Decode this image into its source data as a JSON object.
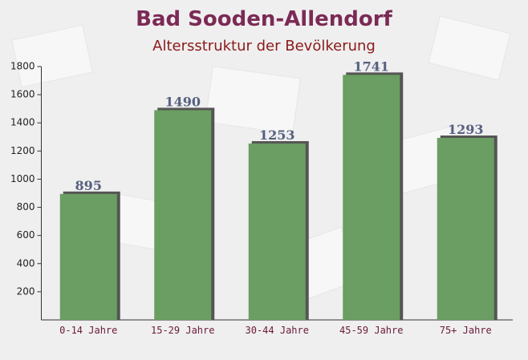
{
  "chart_data": {
    "type": "bar",
    "title": "Bad Sooden-Allendorf",
    "subtitle": "Altersstruktur der Bevölkerung",
    "categories": [
      "0-14 Jahre",
      "15-29 Jahre",
      "30-44 Jahre",
      "45-59 Jahre",
      "75+ Jahre"
    ],
    "values": [
      895,
      1490,
      1253,
      1741,
      1293
    ],
    "color": "#6a9e62",
    "ylim": [
      0,
      1800
    ],
    "yticks": [
      200,
      400,
      600,
      800,
      1000,
      1200,
      1400,
      1600,
      1800
    ]
  }
}
